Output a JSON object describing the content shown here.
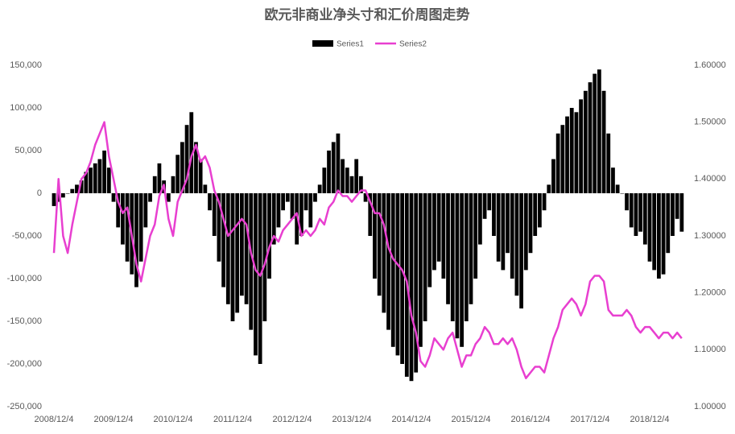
{
  "chart_data": {
    "type": "bar-line",
    "title": "欧元非商业净头寸和汇价周图走势",
    "categories": [
      "2008/12/4",
      null,
      null,
      null,
      null,
      null,
      null,
      null,
      null,
      null,
      null,
      null,
      null,
      "2009/12/4",
      null,
      null,
      null,
      null,
      null,
      null,
      null,
      null,
      null,
      null,
      null,
      null,
      "2010/12/4",
      null,
      null,
      null,
      null,
      null,
      null,
      null,
      null,
      null,
      null,
      null,
      null,
      "2011/12/4",
      null,
      null,
      null,
      null,
      null,
      null,
      null,
      null,
      null,
      null,
      null,
      null,
      "2012/12/4",
      null,
      null,
      null,
      null,
      null,
      null,
      null,
      null,
      null,
      null,
      null,
      null,
      "2013/12/4",
      null,
      null,
      null,
      null,
      null,
      null,
      null,
      null,
      null,
      null,
      null,
      null,
      "2014/12/4",
      null,
      null,
      null,
      null,
      null,
      null,
      null,
      null,
      null,
      null,
      null,
      null,
      "2015/12/4",
      null,
      null,
      null,
      null,
      null,
      null,
      null,
      null,
      null,
      null,
      null,
      null,
      "2016/12/4",
      null,
      null,
      null,
      null,
      null,
      null,
      null,
      null,
      null,
      null,
      null,
      null,
      "2017/12/4",
      null,
      null,
      null,
      null,
      null,
      null,
      null,
      null,
      null,
      null,
      null,
      null,
      "2018/12/4",
      null,
      null,
      null,
      null,
      null,
      null,
      null
    ],
    "series": [
      {
        "name": "Series1",
        "color": "#000000",
        "values": [
          -15000,
          -10000,
          -5000,
          0,
          5000,
          10000,
          15000,
          25000,
          30000,
          35000,
          40000,
          50000,
          30000,
          -10000,
          -40000,
          -60000,
          -80000,
          -95000,
          -110000,
          -80000,
          -40000,
          -10000,
          20000,
          35000,
          15000,
          -10000,
          20000,
          45000,
          60000,
          80000,
          95000,
          60000,
          40000,
          10000,
          -20000,
          -50000,
          -80000,
          -110000,
          -130000,
          -150000,
          -140000,
          -120000,
          -130000,
          -160000,
          -190000,
          -200000,
          -150000,
          -100000,
          -60000,
          -40000,
          -20000,
          -10000,
          -30000,
          -60000,
          -50000,
          -20000,
          -40000,
          -10000,
          10000,
          30000,
          50000,
          60000,
          70000,
          40000,
          30000,
          20000,
          40000,
          20000,
          -10000,
          -50000,
          -100000,
          -120000,
          -140000,
          -160000,
          -180000,
          -190000,
          -200000,
          -215000,
          -220000,
          -210000,
          -180000,
          -150000,
          -110000,
          -90000,
          -80000,
          -100000,
          -130000,
          -150000,
          -170000,
          -180000,
          -150000,
          -130000,
          -100000,
          -60000,
          -30000,
          -20000,
          -50000,
          -80000,
          -90000,
          -70000,
          -100000,
          -120000,
          -135000,
          -90000,
          -70000,
          -50000,
          -40000,
          -20000,
          10000,
          40000,
          70000,
          80000,
          90000,
          100000,
          95000,
          110000,
          120000,
          130000,
          140000,
          145000,
          120000,
          70000,
          30000,
          10000,
          0,
          -20000,
          -40000,
          -50000,
          -45000,
          -60000,
          -80000,
          -90000,
          -100000,
          -95000,
          -70000,
          -50000,
          -30000,
          -45000
        ]
      },
      {
        "name": "Series2",
        "color": "#e83fd0",
        "axis": "y2",
        "values": [
          1.27,
          1.4,
          1.3,
          1.27,
          1.32,
          1.36,
          1.4,
          1.41,
          1.43,
          1.46,
          1.48,
          1.5,
          1.44,
          1.4,
          1.36,
          1.34,
          1.35,
          1.3,
          1.25,
          1.22,
          1.26,
          1.3,
          1.32,
          1.37,
          1.39,
          1.33,
          1.3,
          1.36,
          1.38,
          1.4,
          1.44,
          1.46,
          1.43,
          1.44,
          1.42,
          1.38,
          1.36,
          1.33,
          1.3,
          1.31,
          1.32,
          1.33,
          1.32,
          1.27,
          1.24,
          1.23,
          1.25,
          1.28,
          1.3,
          1.29,
          1.31,
          1.32,
          1.33,
          1.34,
          1.3,
          1.31,
          1.3,
          1.31,
          1.33,
          1.32,
          1.35,
          1.36,
          1.38,
          1.37,
          1.37,
          1.36,
          1.37,
          1.38,
          1.38,
          1.36,
          1.34,
          1.34,
          1.32,
          1.28,
          1.26,
          1.25,
          1.24,
          1.22,
          1.16,
          1.13,
          1.08,
          1.07,
          1.09,
          1.12,
          1.11,
          1.1,
          1.12,
          1.13,
          1.1,
          1.07,
          1.09,
          1.09,
          1.11,
          1.12,
          1.14,
          1.13,
          1.11,
          1.11,
          1.12,
          1.11,
          1.12,
          1.1,
          1.07,
          1.05,
          1.06,
          1.07,
          1.07,
          1.06,
          1.09,
          1.12,
          1.14,
          1.17,
          1.18,
          1.19,
          1.18,
          1.16,
          1.18,
          1.22,
          1.23,
          1.23,
          1.22,
          1.17,
          1.16,
          1.16,
          1.16,
          1.17,
          1.16,
          1.14,
          1.13,
          1.14,
          1.14,
          1.13,
          1.12,
          1.13,
          1.13,
          1.12,
          1.13,
          1.12
        ]
      }
    ],
    "ylim": [
      -250000,
      150000
    ],
    "yticks": [
      {
        "value": -250000,
        "label": "-250,000"
      },
      {
        "value": -200000,
        "label": "-200,000"
      },
      {
        "value": -150000,
        "label": "-150,000"
      },
      {
        "value": -100000,
        "label": "-100,000"
      },
      {
        "value": -50000,
        "label": "-50,000"
      },
      0,
      {
        "value": 50000,
        "label": "50,000"
      },
      {
        "value": 100000,
        "label": "100,000"
      },
      {
        "value": 150000,
        "label": "150,000"
      }
    ],
    "y2lim": [
      1.0,
      1.6
    ],
    "y2ticks": [
      {
        "value": 1.0,
        "label": "1.00000"
      },
      {
        "value": 1.1,
        "label": "1.10000"
      },
      {
        "value": 1.2,
        "label": "1.20000"
      },
      {
        "value": 1.3,
        "label": "1.30000"
      },
      {
        "value": 1.4,
        "label": "1.40000"
      },
      {
        "value": 1.5,
        "label": "1.50000"
      },
      {
        "value": 1.6,
        "label": "1.60000"
      }
    ],
    "legend": "top"
  }
}
